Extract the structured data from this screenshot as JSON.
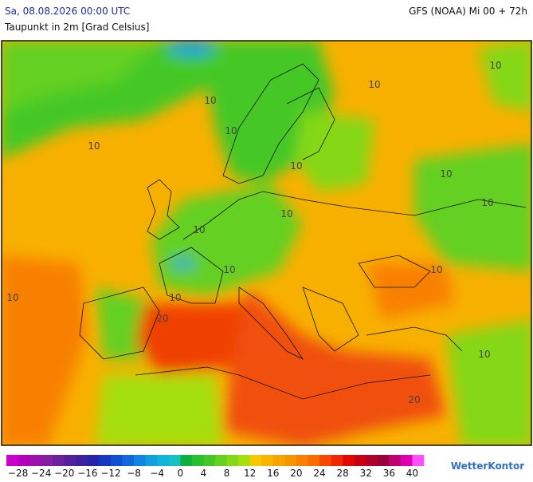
{
  "header": {
    "date": "Sa, 08.08.2026 00:00 UTC",
    "parameter": "Taupunkt in 2m [Grad Celsius]",
    "model": "GFS (NOAA) Mi 00 + 72h"
  },
  "contour_labels": [
    "10",
    "10",
    "10",
    "10",
    "10",
    "10",
    "10",
    "10",
    "10",
    "10",
    "10",
    "10",
    "10",
    "10",
    "10",
    "20",
    "20"
  ],
  "colorbar": {
    "colors": [
      "#cc00cc",
      "#b400bc",
      "#9c10ac",
      "#8420a0",
      "#6c209c",
      "#54209c",
      "#3c20a0",
      "#2424ac",
      "#1438c0",
      "#1050d0",
      "#1068dc",
      "#1084e0",
      "#10a0e0",
      "#10b4d8",
      "#18c0c4",
      "#10b040",
      "#28c030",
      "#44c828",
      "#64d020",
      "#84d818",
      "#a4e010",
      "#f8c800",
      "#f8b400",
      "#f8a400",
      "#f89400",
      "#f88000",
      "#f86c00",
      "#f84800",
      "#f02800",
      "#e00800",
      "#c80014",
      "#b00028",
      "#980038",
      "#c00070",
      "#e000b0",
      "#ff50ff"
    ],
    "labels": [
      "−28",
      "−24",
      "−20",
      "−16",
      "−12",
      "−8",
      "−4",
      "0",
      "4",
      "8",
      "12",
      "16",
      "20",
      "24",
      "28",
      "32",
      "36",
      "40"
    ]
  },
  "brand": "WetterKontor"
}
